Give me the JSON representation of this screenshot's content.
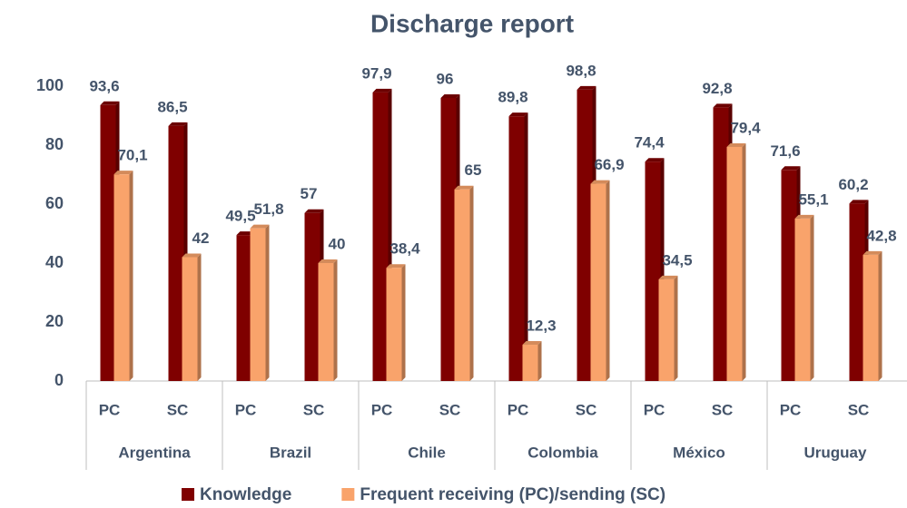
{
  "chart_data": {
    "type": "bar",
    "title": "Discharge report",
    "categories": [
      "PC",
      "SC",
      "PC",
      "SC",
      "PC",
      "SC",
      "PC",
      "SC",
      "PC",
      "SC",
      "PC",
      "SC"
    ],
    "groups": [
      "Argentina",
      "Brazil",
      "Chile",
      "Colombia",
      "México",
      "Uruguay"
    ],
    "series": [
      {
        "name": "Knowledge",
        "color": "#7f0000",
        "values": [
          93.6,
          86.5,
          49.5,
          57,
          97.9,
          96,
          89.8,
          98.8,
          74.4,
          92.8,
          71.6,
          60.2
        ],
        "value_labels": [
          "93,6",
          "86,5",
          "49,5",
          "57",
          "97,9",
          "96",
          "89,8",
          "98,8",
          "74,4",
          "92,8",
          "71,6",
          "60,2"
        ]
      },
      {
        "name": "Frequent receiving (PC)/sending (SC)",
        "color": "#f9a36b",
        "values": [
          70.1,
          42,
          51.8,
          40,
          38.4,
          65,
          12.3,
          66.9,
          34.5,
          79.4,
          55.1,
          42.8
        ],
        "value_labels": [
          "70,1",
          "42",
          "51,8",
          "40",
          "38,4",
          "65",
          "12,3",
          "66,9",
          "34,5",
          "79,4",
          "55,1",
          "42,8"
        ]
      }
    ],
    "ylim": [
      0,
      100
    ],
    "yticks": [
      0,
      20,
      40,
      60,
      80,
      100
    ],
    "grid": false,
    "legend": "bottom"
  }
}
